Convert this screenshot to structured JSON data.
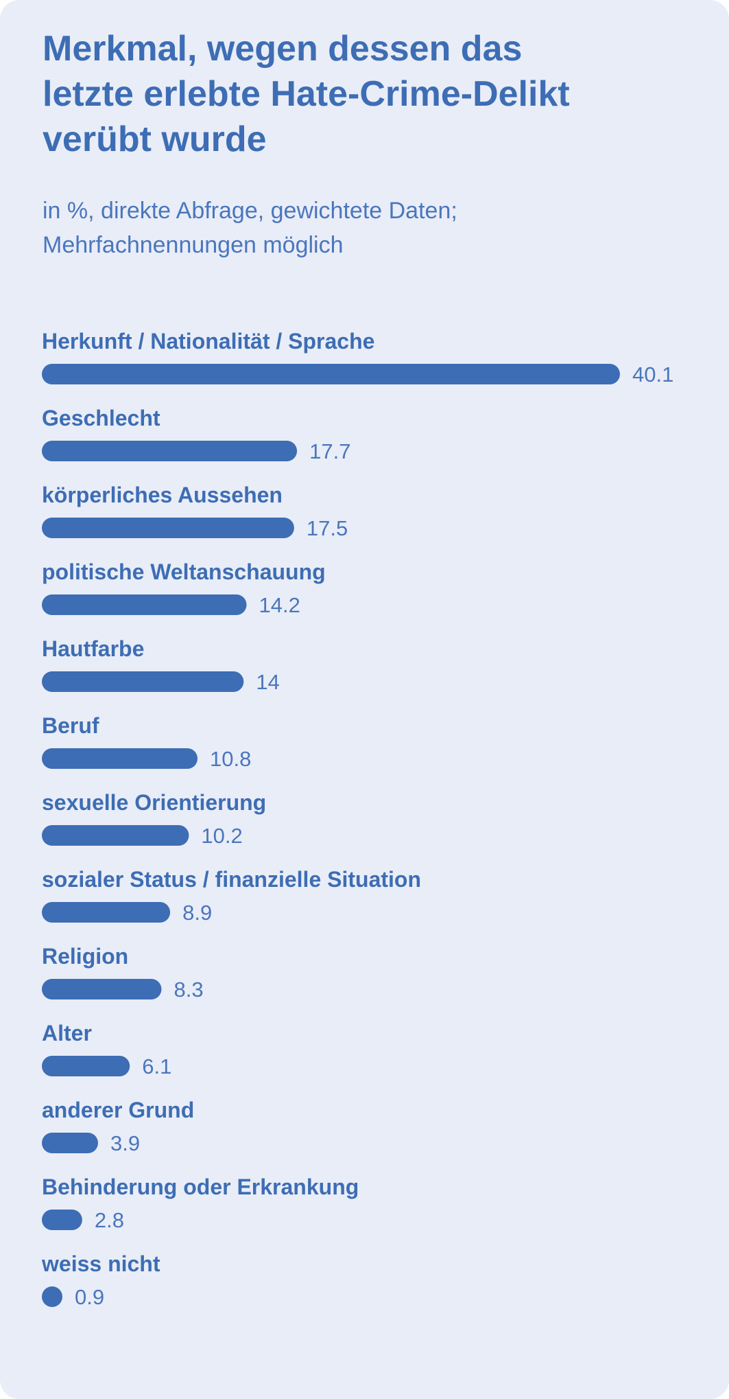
{
  "header": {
    "title": "Merkmal, wegen dessen das\nletzte erlebte Hate-Crime-Delikt\nverübt wurde",
    "subtitle": "in %, direkte Abfrage, gewichtete Daten;\nMehrfachnennungen möglich"
  },
  "colors": {
    "background": "#e9edf7",
    "bar": "#3d6db4",
    "text": "#3d6db4",
    "value_text": "#4a76bd"
  },
  "chart_data": {
    "type": "bar",
    "orientation": "horizontal",
    "unit": "%",
    "categories": [
      "Herkunft / Nationalität / Sprache",
      "Geschlecht",
      "körperliches Aussehen",
      "politische Weltanschauung",
      "Hautfarbe",
      "Beruf",
      "sexuelle Orientierung",
      "sozialer Status / finanzielle Situation",
      "Religion",
      "Alter",
      "anderer Grund",
      "Behinderung oder Erkrankung",
      "weiss nicht"
    ],
    "values": [
      40.1,
      17.7,
      17.5,
      14.2,
      14,
      10.8,
      10.2,
      8.9,
      8.3,
      6.1,
      3.9,
      2.8,
      0.9
    ],
    "value_labels": [
      "40.1",
      "17.7",
      "17.5",
      "14.2",
      "14",
      "10.8",
      "10.2",
      "8.9",
      "8.3",
      "6.1",
      "3.9",
      "2.8",
      "0.9"
    ],
    "xlim": [
      0,
      40.1
    ],
    "grid": false,
    "legend": "none"
  }
}
